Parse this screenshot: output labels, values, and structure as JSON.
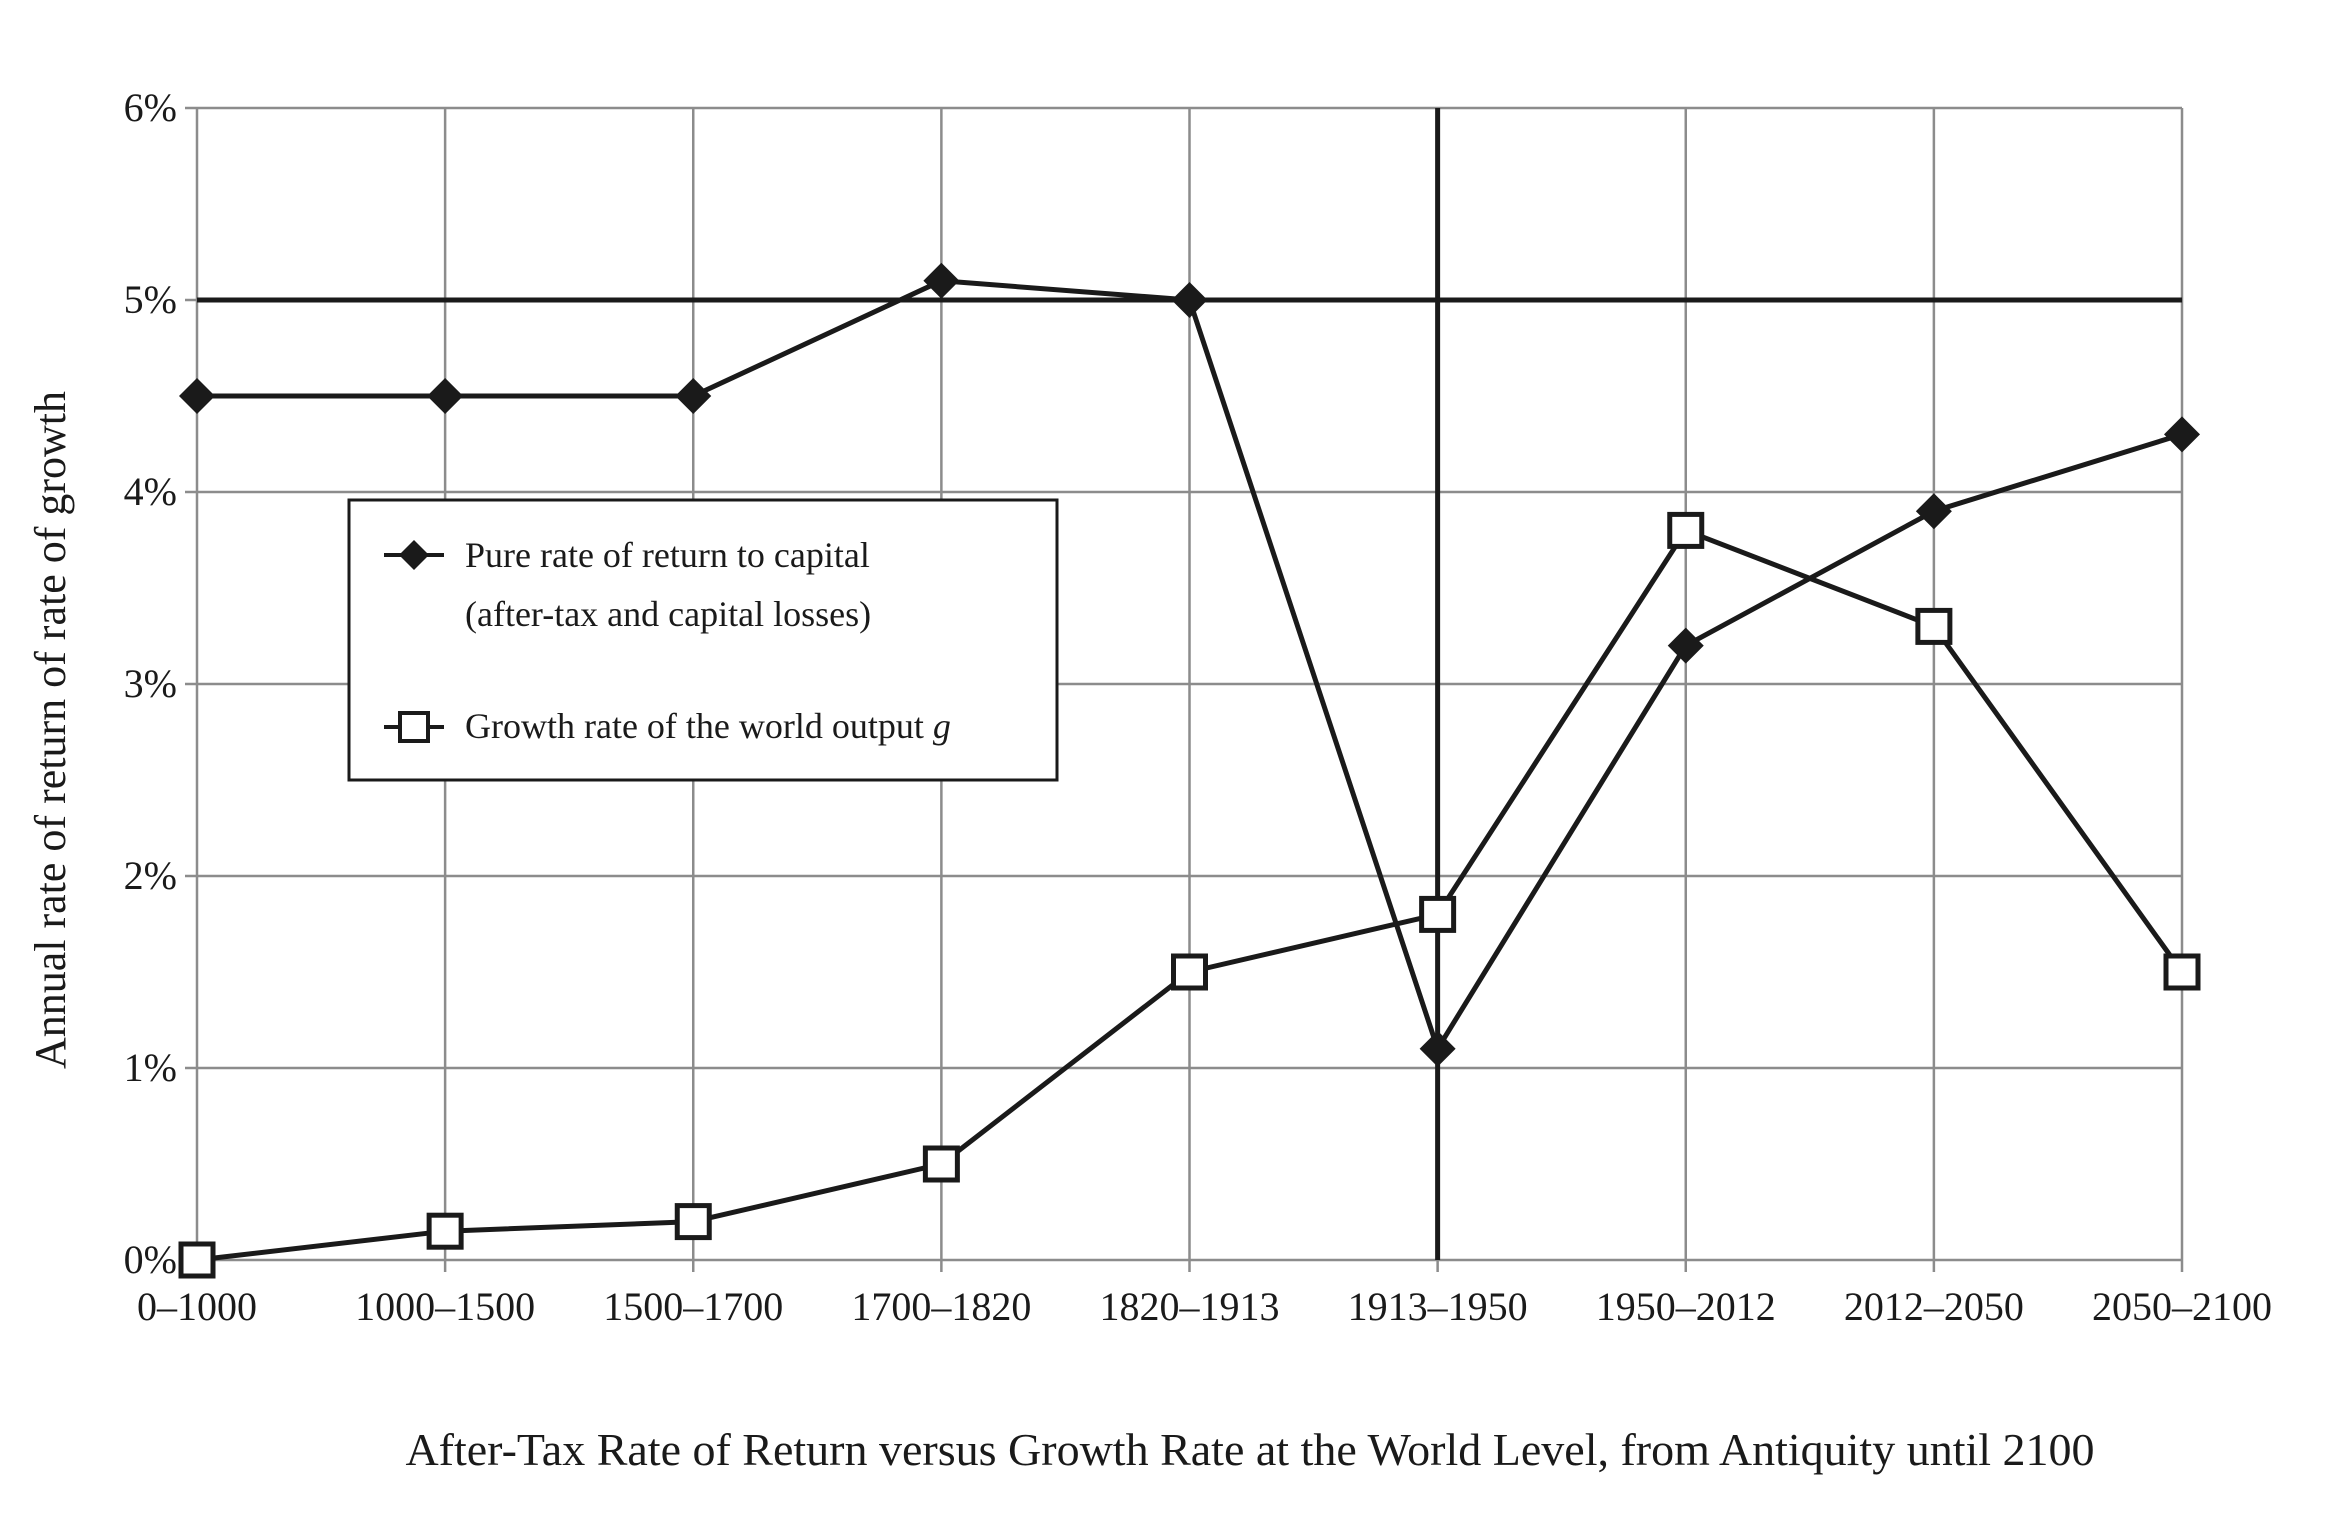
{
  "chart_data": {
    "type": "line",
    "title": "After-Tax Rate of Return versus Growth Rate at the World Level, from Antiquity until 2100",
    "ylabel": "Annual rate of return of rate of growth",
    "xlabel": "",
    "categories": [
      "0–1000",
      "1000–1500",
      "1500–1700",
      "1700–1820",
      "1820–1913",
      "1913–1950",
      "1950–2012",
      "2012–2050",
      "2050–2100"
    ],
    "ylim": [
      0,
      6
    ],
    "yticks": [
      0,
      1,
      2,
      3,
      4,
      5,
      6
    ],
    "ytick_labels": [
      "0%",
      "1%",
      "2%",
      "3%",
      "4%",
      "5%",
      "6%"
    ],
    "grid": true,
    "reference_lines": {
      "horizontal_value": 5,
      "vertical_category": "1913–1950"
    },
    "legend_position": "upper-left inside",
    "series": [
      {
        "legend_line1": "Pure rate of return to capital",
        "legend_line2": "(after-tax and capital losses)",
        "marker": "filled-diamond",
        "values": [
          4.5,
          4.5,
          4.5,
          5.1,
          5.0,
          1.1,
          3.2,
          3.9,
          4.3
        ]
      },
      {
        "legend_line1": "Growth rate of the world output ",
        "legend_italic": "g",
        "marker": "open-square",
        "values": [
          0.0,
          0.15,
          0.2,
          0.5,
          1.5,
          1.8,
          3.8,
          3.3,
          1.5
        ]
      }
    ],
    "colors": {
      "line": "#1a1a1a",
      "grid": "#8c8c8c",
      "background": "#ffffff"
    }
  }
}
